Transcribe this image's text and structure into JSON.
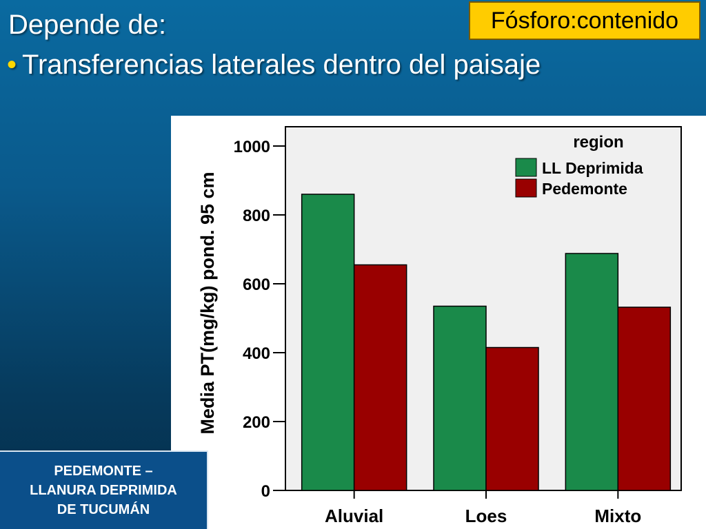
{
  "slide": {
    "title": "Depende de:",
    "bullet": "Transferencias laterales dentro del paisaje",
    "badge": "Fósforo:contenido",
    "region_caption": [
      "PEDEMONTE –",
      "LLANURA DEPRIMIDA",
      "DE TUCUMÁN"
    ]
  },
  "chart_data": {
    "type": "bar",
    "categories": [
      "Aluvial",
      "Loes",
      "Mixto"
    ],
    "series": [
      {
        "name": "LL Deprimida",
        "values": [
          860,
          535,
          688
        ],
        "color": "#1a8a4a"
      },
      {
        "name": "Pedemonte",
        "values": [
          655,
          415,
          532
        ],
        "color": "#990000"
      }
    ],
    "legend_title": "region",
    "legend_position": "top-right",
    "ylabel": "Media PT(mg/kg) pond. 95 cm",
    "xlabel": "",
    "ylim": [
      0,
      1000
    ],
    "yticks": [
      "0",
      "200",
      "400",
      "600",
      "800",
      "1000"
    ],
    "grid": false,
    "plot_background": "#f0f0f0"
  }
}
